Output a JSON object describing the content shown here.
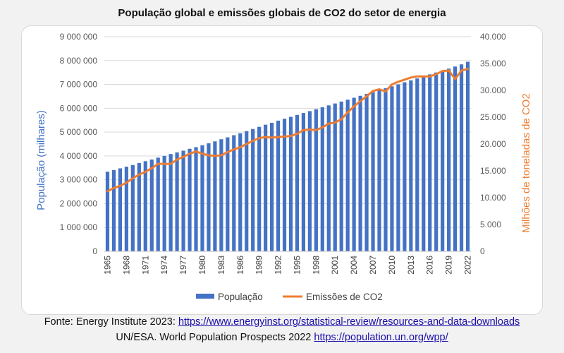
{
  "colors": {
    "population": "#4472c4",
    "emissions": "#ed7d31",
    "grid": "#d9d9d9",
    "axis_text": "#595959"
  },
  "source": {
    "line1_prefix": "Fonte: Energy Institute 2023: ",
    "line1_link": "https://www.energyinst.org/statistical-review/resources-and-data-downloads",
    "line2_prefix": "UN/ESA. World Population Prospects 2022 ",
    "line2_link": "https://population.un.org/wpp/"
  },
  "chart_data": {
    "type": "bar",
    "title": "População global e emissões globais de CO2 do setor de energia",
    "ylabel": "População (milhares)",
    "y2label": "Milhões de toneladas de CO2",
    "ylim": [
      0,
      9000000
    ],
    "y2lim": [
      0,
      40000
    ],
    "y_ticks": [
      "0",
      "1 000 000",
      "2 000 000",
      "3 000 000",
      "4 000 000",
      "5 000 000",
      "6 000 000",
      "7 000 000",
      "8 000 000",
      "9 000 000"
    ],
    "y2_ticks": [
      "0",
      "5.000",
      "10.000",
      "15.000",
      "20.000",
      "25.000",
      "30.000",
      "35.000",
      "40.000"
    ],
    "x": [
      1965,
      1966,
      1967,
      1968,
      1969,
      1970,
      1971,
      1972,
      1973,
      1974,
      1975,
      1976,
      1977,
      1978,
      1979,
      1980,
      1981,
      1982,
      1983,
      1984,
      1985,
      1986,
      1987,
      1988,
      1989,
      1990,
      1991,
      1992,
      1993,
      1994,
      1995,
      1996,
      1997,
      1998,
      1999,
      2000,
      2001,
      2002,
      2003,
      2004,
      2005,
      2006,
      2007,
      2008,
      2009,
      2010,
      2011,
      2012,
      2013,
      2014,
      2015,
      2016,
      2017,
      2018,
      2019,
      2020,
      2021,
      2022
    ],
    "x_tick_labels": [
      "1965",
      "1968",
      "1971",
      "1974",
      "1977",
      "1980",
      "1983",
      "1986",
      "1989",
      "1992",
      "1995",
      "1998",
      "2001",
      "2004",
      "2007",
      "2010",
      "2013",
      "2016",
      "2019",
      "2022"
    ],
    "grid": true,
    "legend_position": "bottom",
    "series": [
      {
        "name": "População",
        "type": "bar",
        "axis": "left",
        "values": [
          3340000,
          3410000,
          3480000,
          3550000,
          3620000,
          3700000,
          3780000,
          3850000,
          3930000,
          4000000,
          4080000,
          4150000,
          4220000,
          4300000,
          4370000,
          4450000,
          4530000,
          4610000,
          4700000,
          4780000,
          4870000,
          4950000,
          5040000,
          5130000,
          5220000,
          5310000,
          5390000,
          5480000,
          5560000,
          5640000,
          5720000,
          5800000,
          5880000,
          5960000,
          6040000,
          6120000,
          6200000,
          6280000,
          6360000,
          6440000,
          6520000,
          6600000,
          6680000,
          6760000,
          6840000,
          6920000,
          7000000,
          7090000,
          7170000,
          7250000,
          7330000,
          7420000,
          7500000,
          7580000,
          7660000,
          7750000,
          7840000,
          7950000
        ]
      },
      {
        "name": "Emissões de CO2",
        "type": "line",
        "axis": "right",
        "values": [
          11200,
          11800,
          12200,
          12800,
          13600,
          14300,
          14800,
          15500,
          16300,
          16300,
          16300,
          17100,
          17600,
          18200,
          18600,
          18200,
          17900,
          17800,
          17900,
          18500,
          19000,
          19400,
          20000,
          20600,
          21100,
          21300,
          21200,
          21300,
          21400,
          21500,
          21900,
          22600,
          22700,
          22600,
          23100,
          23800,
          24000,
          24600,
          25900,
          27000,
          28000,
          28900,
          29900,
          30200,
          29800,
          31100,
          31600,
          32000,
          32400,
          32600,
          32600,
          32600,
          33000,
          33600,
          33700,
          32100,
          33700,
          34000
        ]
      }
    ]
  }
}
